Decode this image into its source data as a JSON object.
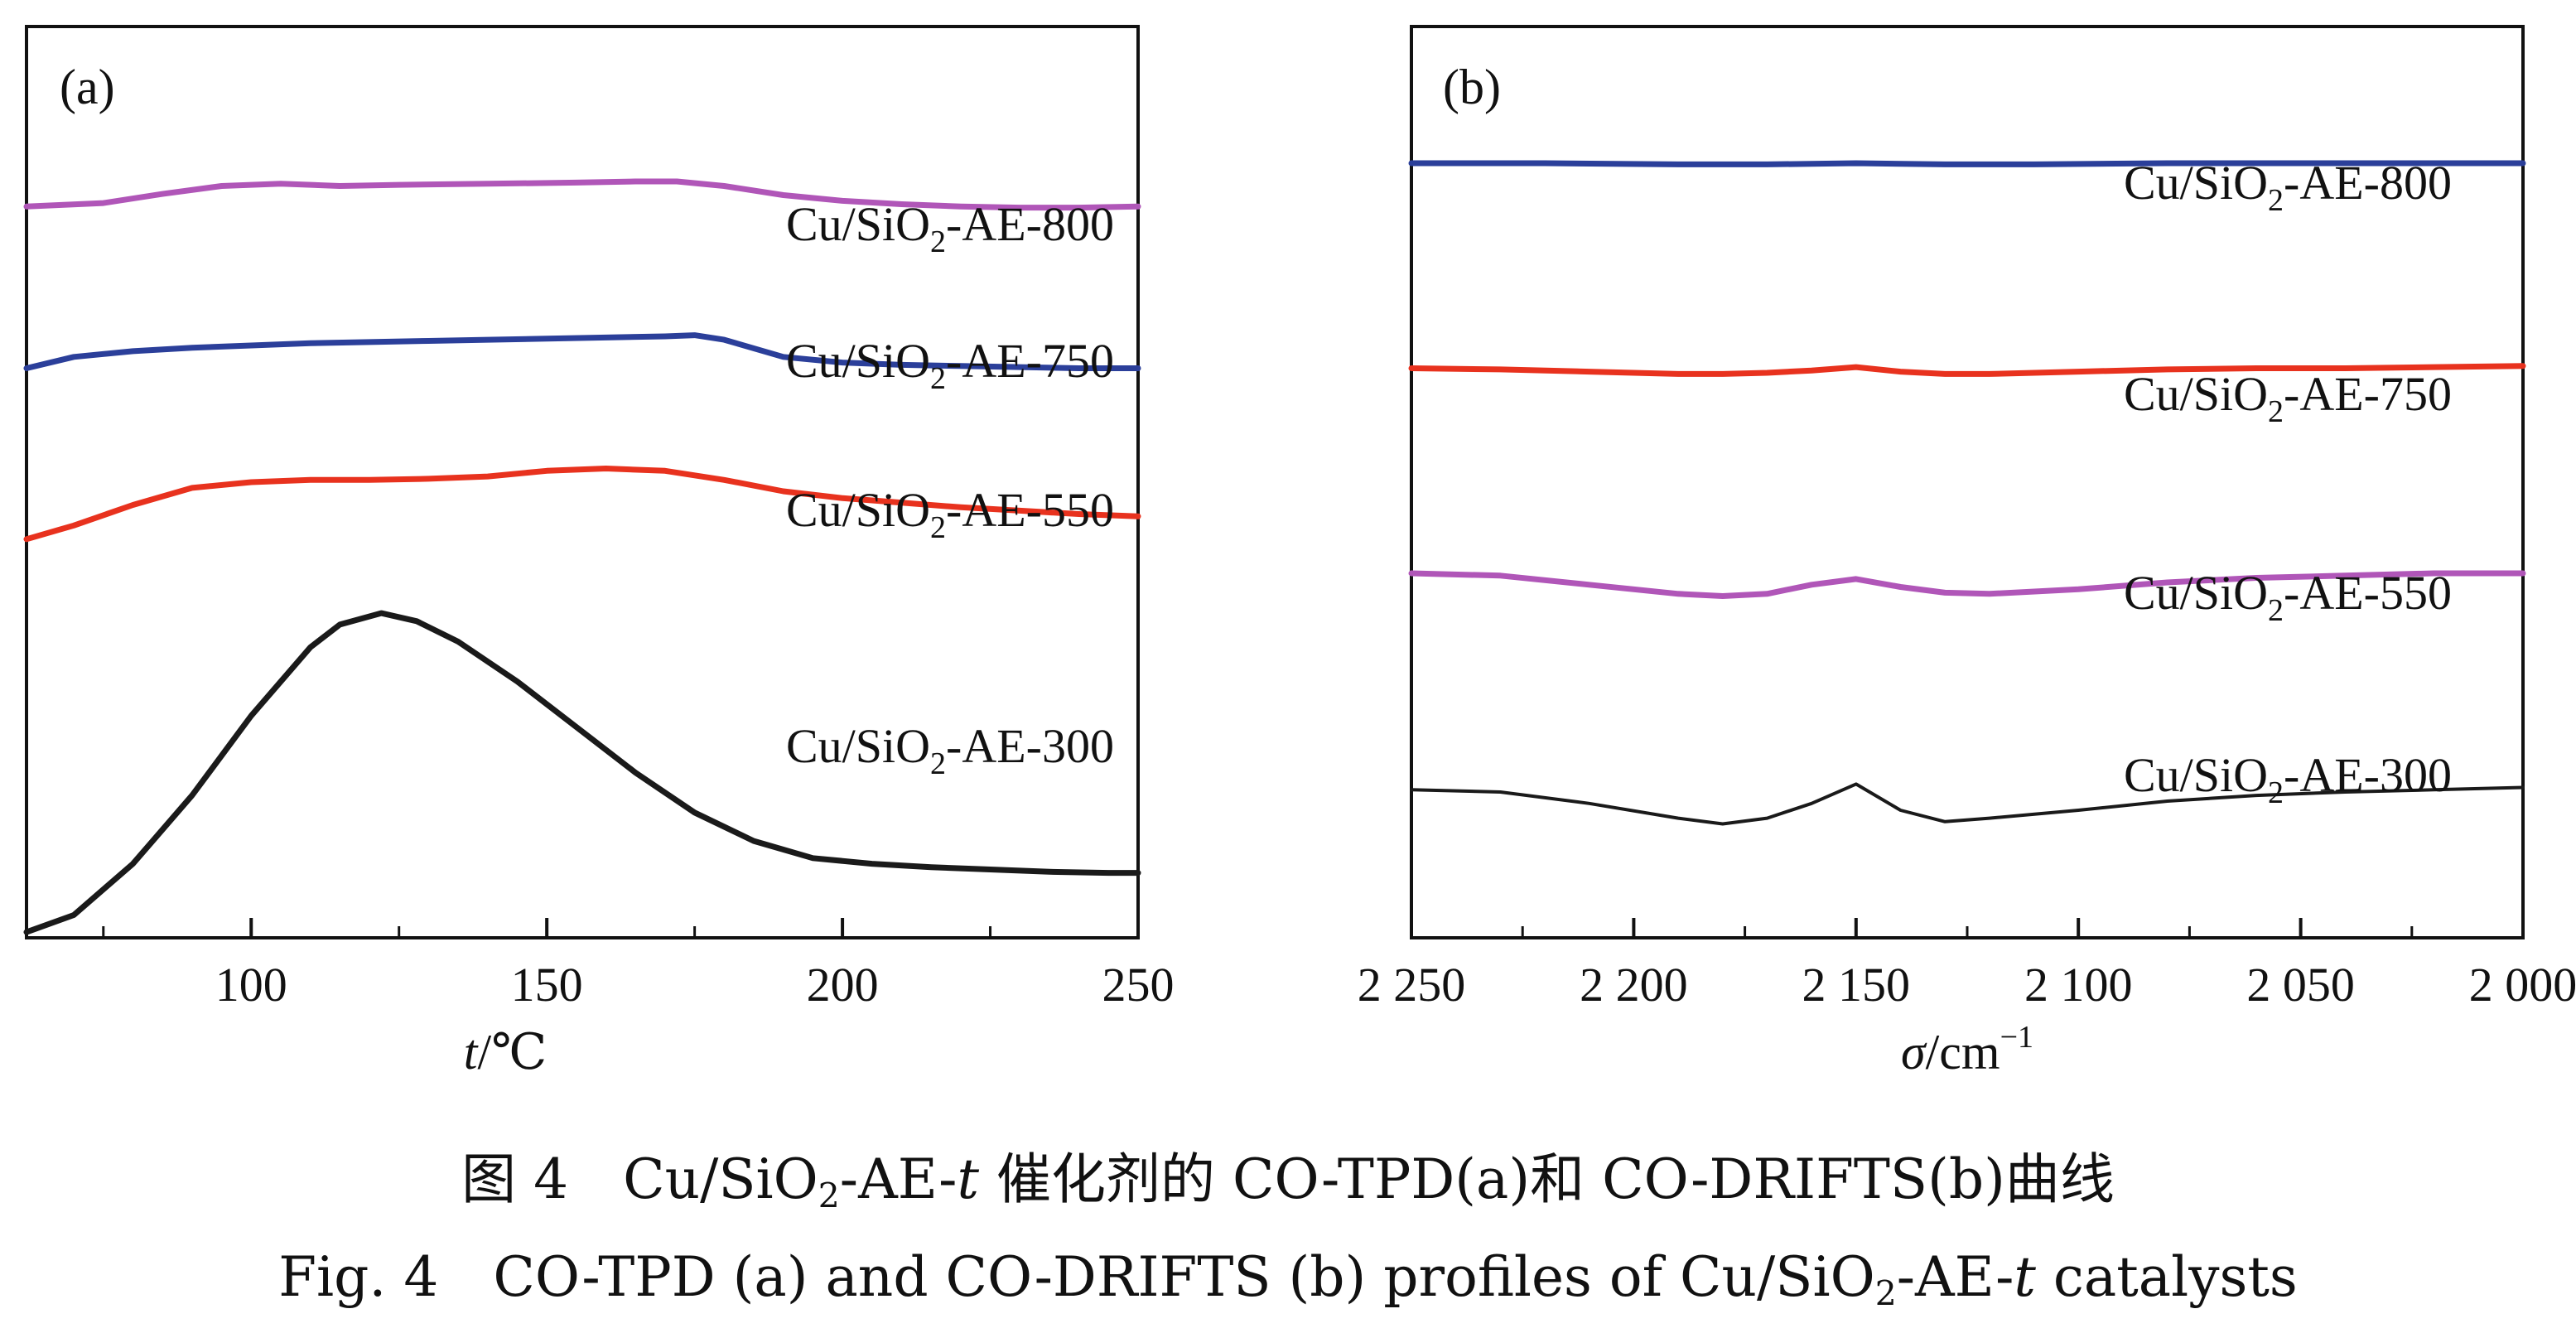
{
  "colors": {
    "black": "#1a1a1a",
    "red": "#e8321e",
    "blue": "#2b3f9a",
    "purple": "#b056b8",
    "axis": "#111111"
  },
  "chart_data": [
    {
      "panel_label": "(a)",
      "type": "line",
      "xlabel": "t/℃",
      "xlim": [
        62,
        250
      ],
      "xticks": [
        100,
        150,
        200,
        250
      ],
      "xtick_labels": [
        "100",
        "150",
        "200",
        "250"
      ],
      "y_ticks_shown": false,
      "series": [
        {
          "name": "Cu/SiO2-AE-300",
          "color": "#1a1a1a",
          "x": [
            62,
            70,
            80,
            90,
            100,
            110,
            115,
            122,
            128,
            135,
            145,
            155,
            165,
            175,
            185,
            195,
            205,
            215,
            225,
            235,
            245,
            250
          ],
          "y": [
            0.05,
            0.2,
            0.65,
            1.25,
            1.95,
            2.55,
            2.75,
            2.85,
            2.78,
            2.6,
            2.25,
            1.85,
            1.45,
            1.1,
            0.85,
            0.7,
            0.65,
            0.62,
            0.6,
            0.58,
            0.57,
            0.57
          ]
        },
        {
          "name": "Cu/SiO2-AE-550",
          "color": "#e8321e",
          "x": [
            62,
            70,
            80,
            90,
            100,
            110,
            120,
            130,
            140,
            150,
            160,
            170,
            180,
            190,
            200,
            210,
            220,
            230,
            240,
            250
          ],
          "y": [
            3.5,
            3.62,
            3.8,
            3.95,
            4.0,
            4.02,
            4.02,
            4.03,
            4.05,
            4.1,
            4.12,
            4.1,
            4.02,
            3.92,
            3.86,
            3.82,
            3.78,
            3.75,
            3.72,
            3.7
          ]
        },
        {
          "name": "Cu/SiO2-AE-750",
          "color": "#2b3f9a",
          "x": [
            62,
            70,
            80,
            90,
            100,
            110,
            120,
            130,
            140,
            150,
            160,
            170,
            175,
            180,
            190,
            200,
            210,
            220,
            230,
            240,
            250
          ],
          "y": [
            5.0,
            5.1,
            5.15,
            5.18,
            5.2,
            5.22,
            5.23,
            5.24,
            5.25,
            5.26,
            5.27,
            5.28,
            5.29,
            5.25,
            5.1,
            5.05,
            5.03,
            5.02,
            5.01,
            5.0,
            5.0
          ]
        },
        {
          "name": "Cu/SiO2-AE-800",
          "color": "#b056b8",
          "x": [
            62,
            75,
            85,
            95,
            105,
            115,
            125,
            140,
            155,
            165,
            172,
            180,
            190,
            200,
            210,
            220,
            230,
            240,
            250
          ],
          "y": [
            6.42,
            6.45,
            6.53,
            6.6,
            6.62,
            6.6,
            6.61,
            6.62,
            6.63,
            6.64,
            6.64,
            6.6,
            6.52,
            6.47,
            6.44,
            6.42,
            6.41,
            6.41,
            6.42
          ]
        }
      ],
      "series_labels": [
        {
          "prefix": "Cu/SiO",
          "sub": "2",
          "suffix": "-AE-800"
        },
        {
          "prefix": "Cu/SiO",
          "sub": "2",
          "suffix": "-AE-750"
        },
        {
          "prefix": "Cu/SiO",
          "sub": "2",
          "suffix": "-AE-550"
        },
        {
          "prefix": "Cu/SiO",
          "sub": "2",
          "suffix": "-AE-300"
        }
      ]
    },
    {
      "panel_label": "(b)",
      "type": "line",
      "xlabel": "σ/cm-1",
      "xlim": [
        2250,
        2000
      ],
      "x_reversed": true,
      "xticks": [
        2250,
        2200,
        2150,
        2100,
        2050,
        2000
      ],
      "xtick_labels": [
        "2 250",
        "2 200",
        "2 150",
        "2 100",
        "2 050",
        "2 000"
      ],
      "y_ticks_shown": false,
      "series": [
        {
          "name": "Cu/SiO2-AE-300",
          "color": "#1a1a1a",
          "x": [
            2250,
            2230,
            2210,
            2190,
            2180,
            2170,
            2160,
            2150,
            2140,
            2130,
            2120,
            2100,
            2080,
            2060,
            2040,
            2020,
            2000
          ],
          "y": [
            0.3,
            0.28,
            0.18,
            0.05,
            0.0,
            0.05,
            0.18,
            0.35,
            0.12,
            0.02,
            0.05,
            0.12,
            0.2,
            0.25,
            0.28,
            0.3,
            0.32
          ]
        },
        {
          "name": "Cu/SiO2-AE-550",
          "color": "#b056b8",
          "x": [
            2250,
            2230,
            2210,
            2190,
            2180,
            2170,
            2160,
            2150,
            2140,
            2130,
            2120,
            2100,
            2080,
            2060,
            2040,
            2020,
            2000
          ],
          "y": [
            2.2,
            2.18,
            2.1,
            2.02,
            2.0,
            2.02,
            2.1,
            2.15,
            2.08,
            2.03,
            2.02,
            2.06,
            2.12,
            2.16,
            2.18,
            2.2,
            2.2
          ]
        },
        {
          "name": "Cu/SiO2-AE-750",
          "color": "#e8321e",
          "x": [
            2250,
            2230,
            2210,
            2190,
            2180,
            2170,
            2160,
            2150,
            2140,
            2130,
            2120,
            2100,
            2080,
            2060,
            2040,
            2020,
            2000
          ],
          "y": [
            4.0,
            3.99,
            3.97,
            3.95,
            3.95,
            3.96,
            3.98,
            4.01,
            3.97,
            3.95,
            3.95,
            3.97,
            3.99,
            4.0,
            4.0,
            4.01,
            4.02
          ]
        },
        {
          "name": "Cu/SiO2-AE-800",
          "color": "#2b3f9a",
          "x": [
            2250,
            2220,
            2190,
            2170,
            2150,
            2130,
            2110,
            2080,
            2050,
            2020,
            2000
          ],
          "y": [
            5.8,
            5.8,
            5.79,
            5.79,
            5.8,
            5.79,
            5.79,
            5.8,
            5.8,
            5.8,
            5.8
          ]
        }
      ],
      "series_labels": [
        {
          "prefix": "Cu/SiO",
          "sub": "2",
          "suffix": "-AE-800"
        },
        {
          "prefix": "Cu/SiO",
          "sub": "2",
          "suffix": "-AE-750"
        },
        {
          "prefix": "Cu/SiO",
          "sub": "2",
          "suffix": "-AE-550"
        },
        {
          "prefix": "Cu/SiO",
          "sub": "2",
          "suffix": "-AE-300"
        }
      ]
    }
  ],
  "caption": {
    "cn_prefix": "图 4　Cu/SiO",
    "cn_sub": "2",
    "cn_mid": "-AE-",
    "cn_t": "t",
    "cn_suffix": " 催化剂的 CO-TPD(a)和 CO-DRIFTS(b)曲线",
    "en_prefix": "Fig. 4　CO-TPD (a) and CO-DRIFTS (b) profiles of Cu/SiO",
    "en_sub": "2",
    "en_mid": "-AE-",
    "en_t": "t",
    "en_suffix": " catalysts"
  }
}
